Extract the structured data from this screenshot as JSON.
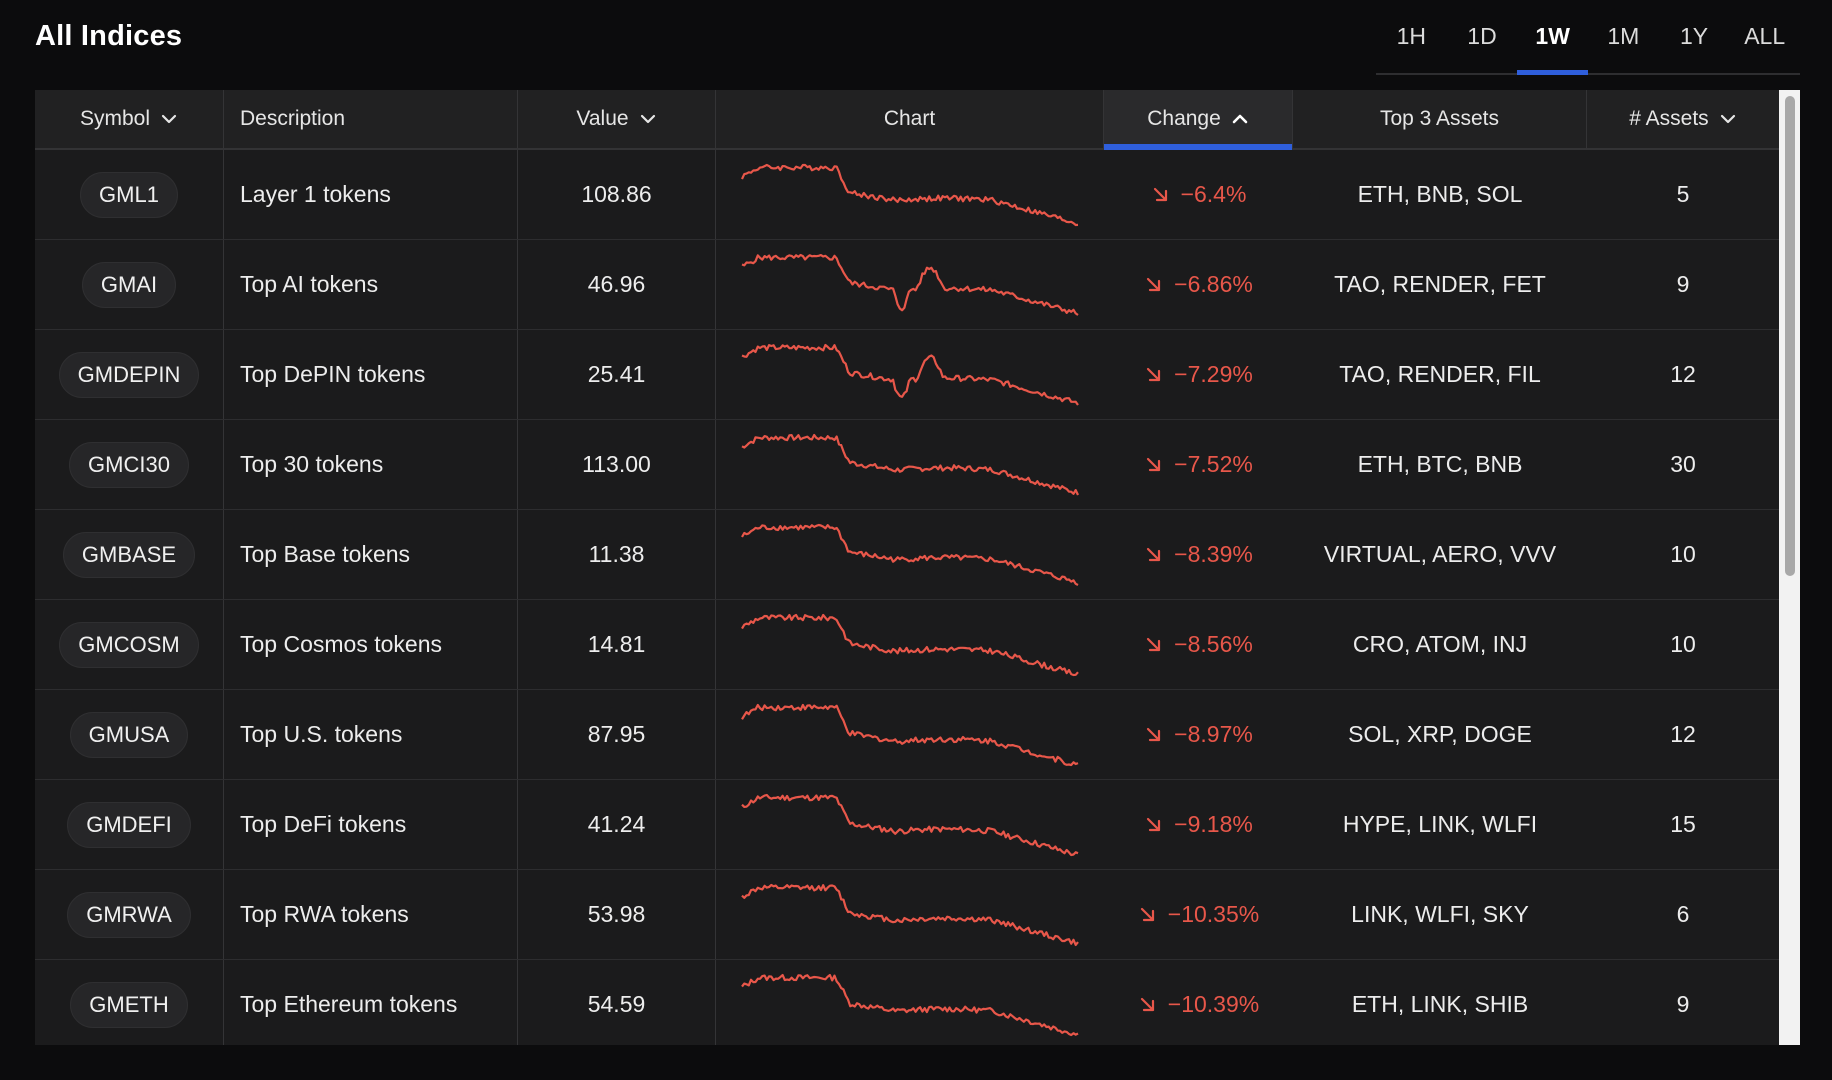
{
  "page": {
    "title": "All Indices"
  },
  "timeframes": [
    {
      "label": "1H",
      "active": false
    },
    {
      "label": "1D",
      "active": false
    },
    {
      "label": "1W",
      "active": true
    },
    {
      "label": "1M",
      "active": false
    },
    {
      "label": "1Y",
      "active": false
    },
    {
      "label": "ALL",
      "active": false
    }
  ],
  "table": {
    "columns": {
      "symbol": "Symbol",
      "description": "Description",
      "value": "Value",
      "chart": "Chart",
      "change": "Change",
      "top_assets": "Top 3 Assets",
      "num_assets": "# Assets"
    },
    "sorted_by": "change",
    "rows": [
      {
        "symbol": "GML1",
        "description": "Layer 1 tokens",
        "value": "108.86",
        "change": "−6.4%",
        "top_assets": "ETH, BNB, SOL",
        "num_assets": "5",
        "spark_seed": 1
      },
      {
        "symbol": "GMAI",
        "description": "Top AI tokens",
        "value": "46.96",
        "change": "−6.86%",
        "top_assets": "TAO, RENDER, FET",
        "num_assets": "9",
        "spark_seed": 2
      },
      {
        "symbol": "GMDEPIN",
        "description": "Top DePIN tokens",
        "value": "25.41",
        "change": "−7.29%",
        "top_assets": "TAO, RENDER, FIL",
        "num_assets": "12",
        "spark_seed": 3
      },
      {
        "symbol": "GMCI30",
        "description": "Top 30 tokens",
        "value": "113.00",
        "change": "−7.52%",
        "top_assets": "ETH, BTC, BNB",
        "num_assets": "30",
        "spark_seed": 4
      },
      {
        "symbol": "GMBASE",
        "description": "Top Base tokens",
        "value": "11.38",
        "change": "−8.39%",
        "top_assets": "VIRTUAL, AERO, VVV",
        "num_assets": "10",
        "spark_seed": 5
      },
      {
        "symbol": "GMCOSM",
        "description": "Top Cosmos tokens",
        "value": "14.81",
        "change": "−8.56%",
        "top_assets": "CRO, ATOM, INJ",
        "num_assets": "10",
        "spark_seed": 6
      },
      {
        "symbol": "GMUSA",
        "description": "Top U.S. tokens",
        "value": "87.95",
        "change": "−8.97%",
        "top_assets": "SOL, XRP, DOGE",
        "num_assets": "12",
        "spark_seed": 7
      },
      {
        "symbol": "GMDEFI",
        "description": "Top DeFi tokens",
        "value": "41.24",
        "change": "−9.18%",
        "top_assets": "HYPE, LINK, WLFI",
        "num_assets": "15",
        "spark_seed": 8
      },
      {
        "symbol": "GMRWA",
        "description": "Top RWA tokens",
        "value": "53.98",
        "change": "−10.35%",
        "top_assets": "LINK, WLFI, SKY",
        "num_assets": "6",
        "spark_seed": 9
      },
      {
        "symbol": "GMETH",
        "description": "Top Ethereum tokens",
        "value": "54.59",
        "change": "−10.39%",
        "top_assets": "ETH, LINK, SHIB",
        "num_assets": "9",
        "spark_seed": 10
      }
    ]
  },
  "colors": {
    "negative": "#e8574a",
    "accent": "#2f5fdc"
  },
  "icons": {
    "sort_desc": "chevron-down-icon",
    "sort_asc": "chevron-up-icon",
    "change_down": "arrow-down-right-icon"
  }
}
